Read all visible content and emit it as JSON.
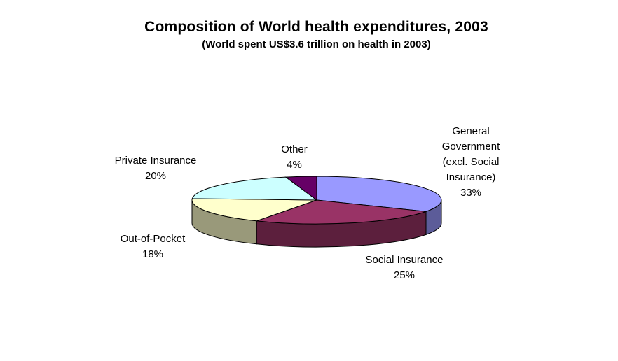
{
  "chart_data": {
    "type": "pie",
    "title": "Composition of World health expenditures, 2003",
    "subtitle": "(World spent US$3.6 trillion on health in 2003)",
    "slices": [
      {
        "label": "General Government (excl. Social Insurance)",
        "value": 33,
        "display": "33%",
        "top": "#9999ff",
        "side": "#5c5c99"
      },
      {
        "label": "Social Insurance",
        "value": 25,
        "display": "25%",
        "top": "#993366",
        "side": "#5c1f3d"
      },
      {
        "label": "Out-of-Pocket",
        "value": 18,
        "display": "18%",
        "top": "#ffffcc",
        "side": "#99997a"
      },
      {
        "label": "Private Insurance",
        "value": 20,
        "display": "20%",
        "top": "#ccffff",
        "side": "#7a9999"
      },
      {
        "label": "Other",
        "value": 4,
        "display": "4%",
        "top": "#660066",
        "side": "#3d003d"
      }
    ],
    "legend": "none"
  }
}
